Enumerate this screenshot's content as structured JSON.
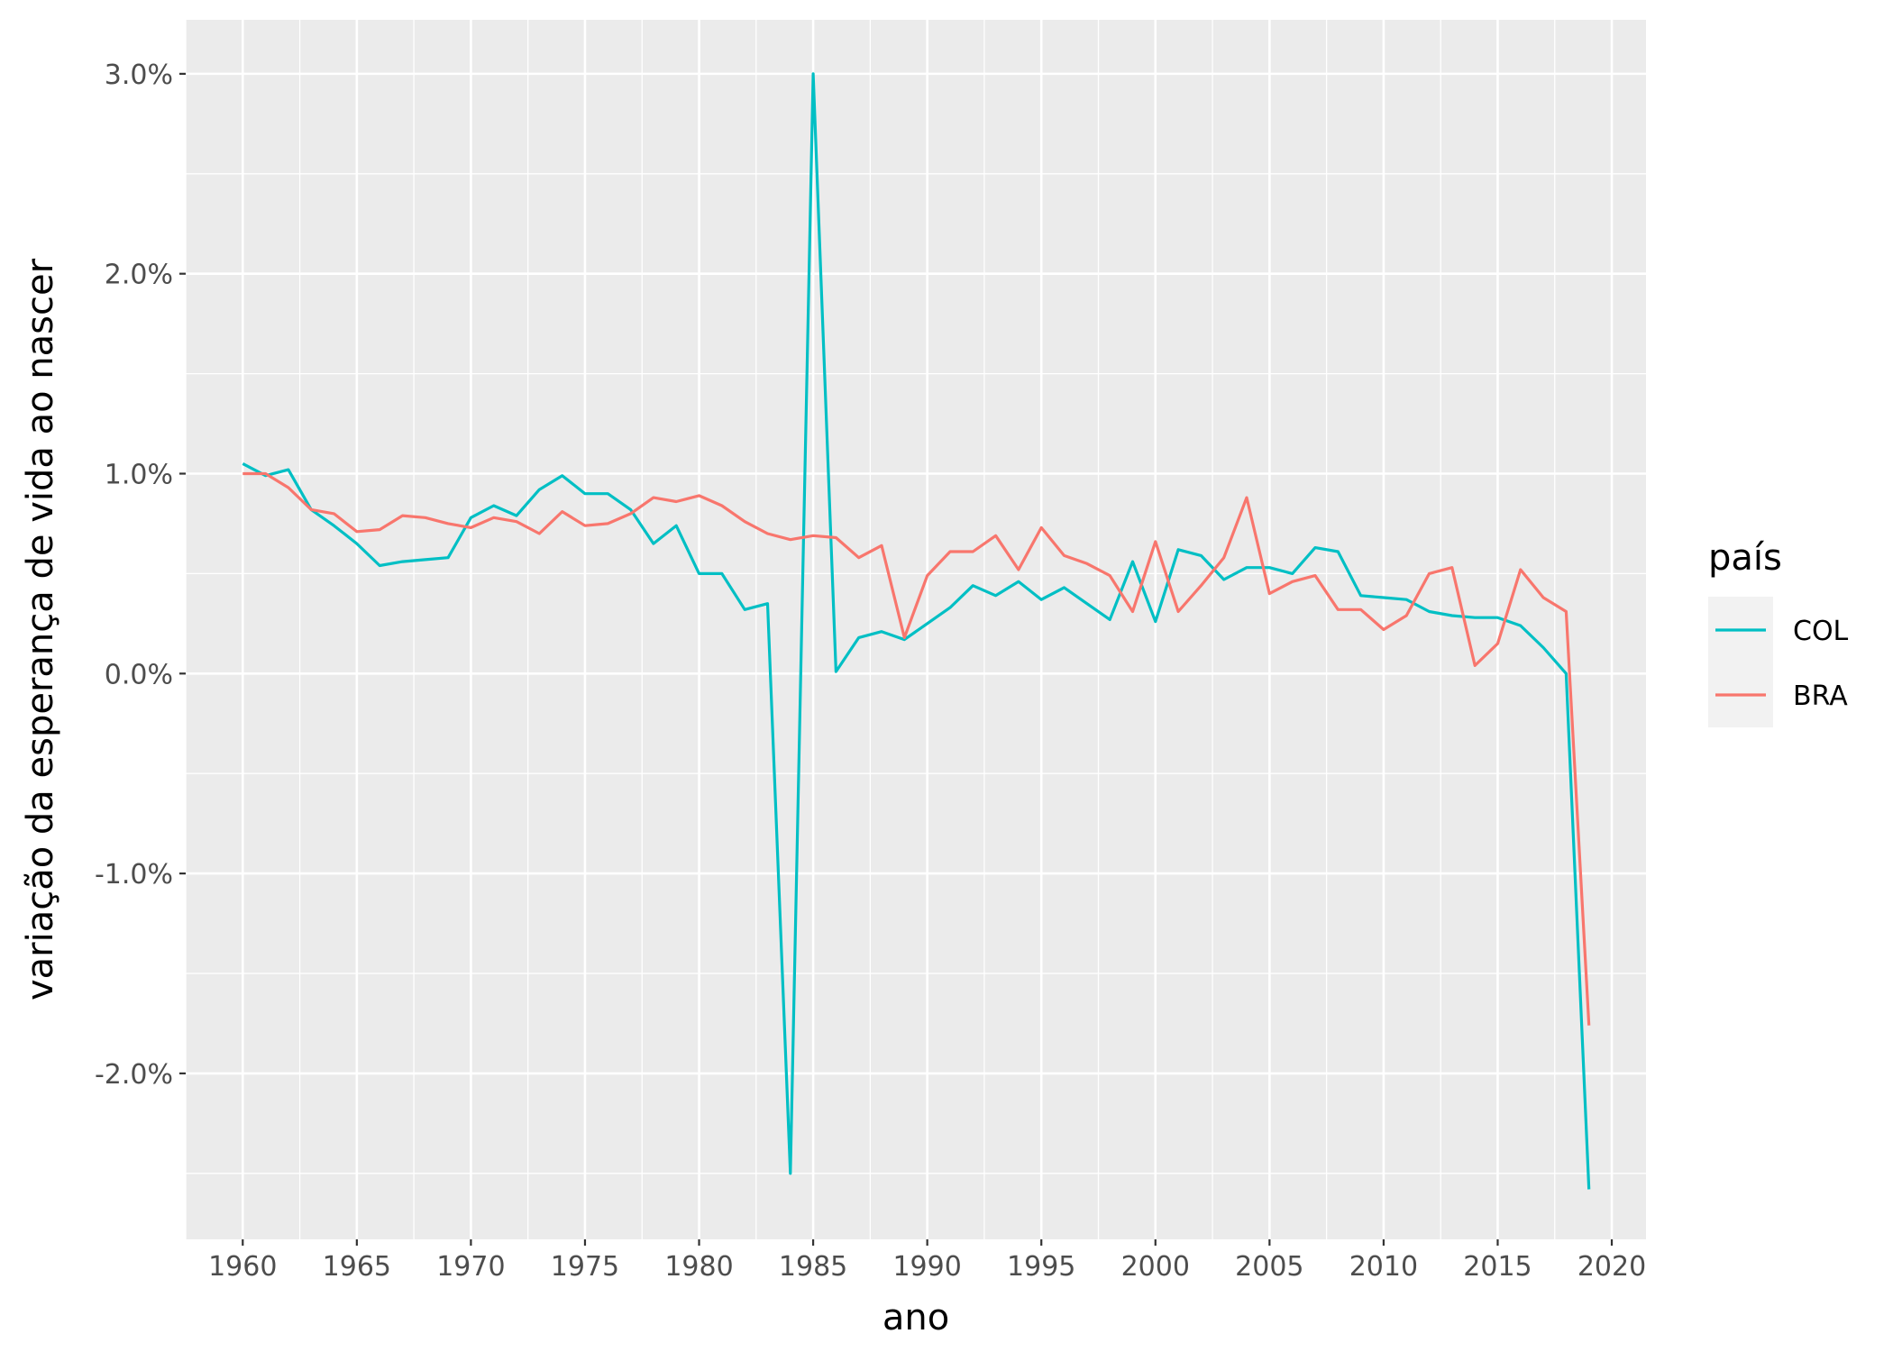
{
  "chart_data": {
    "type": "line",
    "title": "",
    "xlabel": "ano",
    "ylabel": "variação da esperança de vida ao nascer",
    "xlim": [
      1957.5,
      2021.5
    ],
    "ylim": [
      -2.83,
      3.27
    ],
    "x_ticks": [
      1960,
      1965,
      1970,
      1975,
      1980,
      1985,
      1990,
      1995,
      2000,
      2005,
      2010,
      2015,
      2020
    ],
    "x_tick_labels": [
      "1960",
      "1965",
      "1970",
      "1975",
      "1980",
      "1985",
      "1990",
      "1995",
      "2000",
      "2005",
      "2010",
      "2015",
      "2020"
    ],
    "y_ticks": [
      -2,
      -1,
      0,
      1,
      2,
      3
    ],
    "y_tick_labels": [
      "-2.0%",
      "-1.0%",
      "0.0%",
      "1.0%",
      "2.0%",
      "3.0%"
    ],
    "y_unit": "%",
    "grid": true,
    "background": "#ebebeb",
    "legend": {
      "title": "país",
      "placement": "right"
    },
    "x": [
      1960,
      1961,
      1962,
      1963,
      1964,
      1965,
      1966,
      1967,
      1968,
      1969,
      1970,
      1971,
      1972,
      1973,
      1974,
      1975,
      1976,
      1977,
      1978,
      1979,
      1980,
      1981,
      1982,
      1983,
      1984,
      1985,
      1986,
      1987,
      1988,
      1989,
      1990,
      1991,
      1992,
      1993,
      1994,
      1995,
      1996,
      1997,
      1998,
      1999,
      2000,
      2001,
      2002,
      2003,
      2004,
      2005,
      2006,
      2007,
      2008,
      2009,
      2010,
      2011,
      2012,
      2013,
      2014,
      2015,
      2016,
      2017,
      2018,
      2019
    ],
    "series": [
      {
        "name": "COL",
        "color": "#00bfc4",
        "values": [
          1.05,
          0.99,
          1.02,
          0.82,
          0.74,
          0.65,
          0.54,
          0.56,
          0.57,
          0.58,
          0.78,
          0.84,
          0.79,
          0.92,
          0.99,
          0.9,
          0.9,
          0.82,
          0.65,
          0.74,
          0.5,
          0.5,
          0.32,
          0.35,
          -2.5,
          3.0,
          0.01,
          0.18,
          0.21,
          0.17,
          0.25,
          0.33,
          0.44,
          0.39,
          0.46,
          0.37,
          0.43,
          0.35,
          0.27,
          0.56,
          0.26,
          0.62,
          0.59,
          0.47,
          0.53,
          0.53,
          0.5,
          0.63,
          0.61,
          0.39,
          0.38,
          0.37,
          0.31,
          0.29,
          0.28,
          0.28,
          0.24,
          0.13,
          0.0,
          -2.58
        ]
      },
      {
        "name": "BRA",
        "color": "#f8766d",
        "values": [
          1.0,
          1.0,
          0.93,
          0.82,
          0.8,
          0.71,
          0.72,
          0.79,
          0.78,
          0.75,
          0.73,
          0.78,
          0.76,
          0.7,
          0.81,
          0.74,
          0.75,
          0.8,
          0.88,
          0.86,
          0.89,
          0.84,
          0.76,
          0.7,
          0.67,
          0.69,
          0.68,
          0.58,
          0.64,
          0.18,
          0.49,
          0.61,
          0.61,
          0.69,
          0.52,
          0.73,
          0.59,
          0.55,
          0.49,
          0.31,
          0.66,
          0.31,
          0.44,
          0.58,
          0.88,
          0.4,
          0.46,
          0.49,
          0.32,
          0.32,
          0.22,
          0.29,
          0.5,
          0.53,
          0.04,
          0.15,
          0.52,
          0.38,
          0.31,
          -1.76
        ]
      }
    ]
  }
}
